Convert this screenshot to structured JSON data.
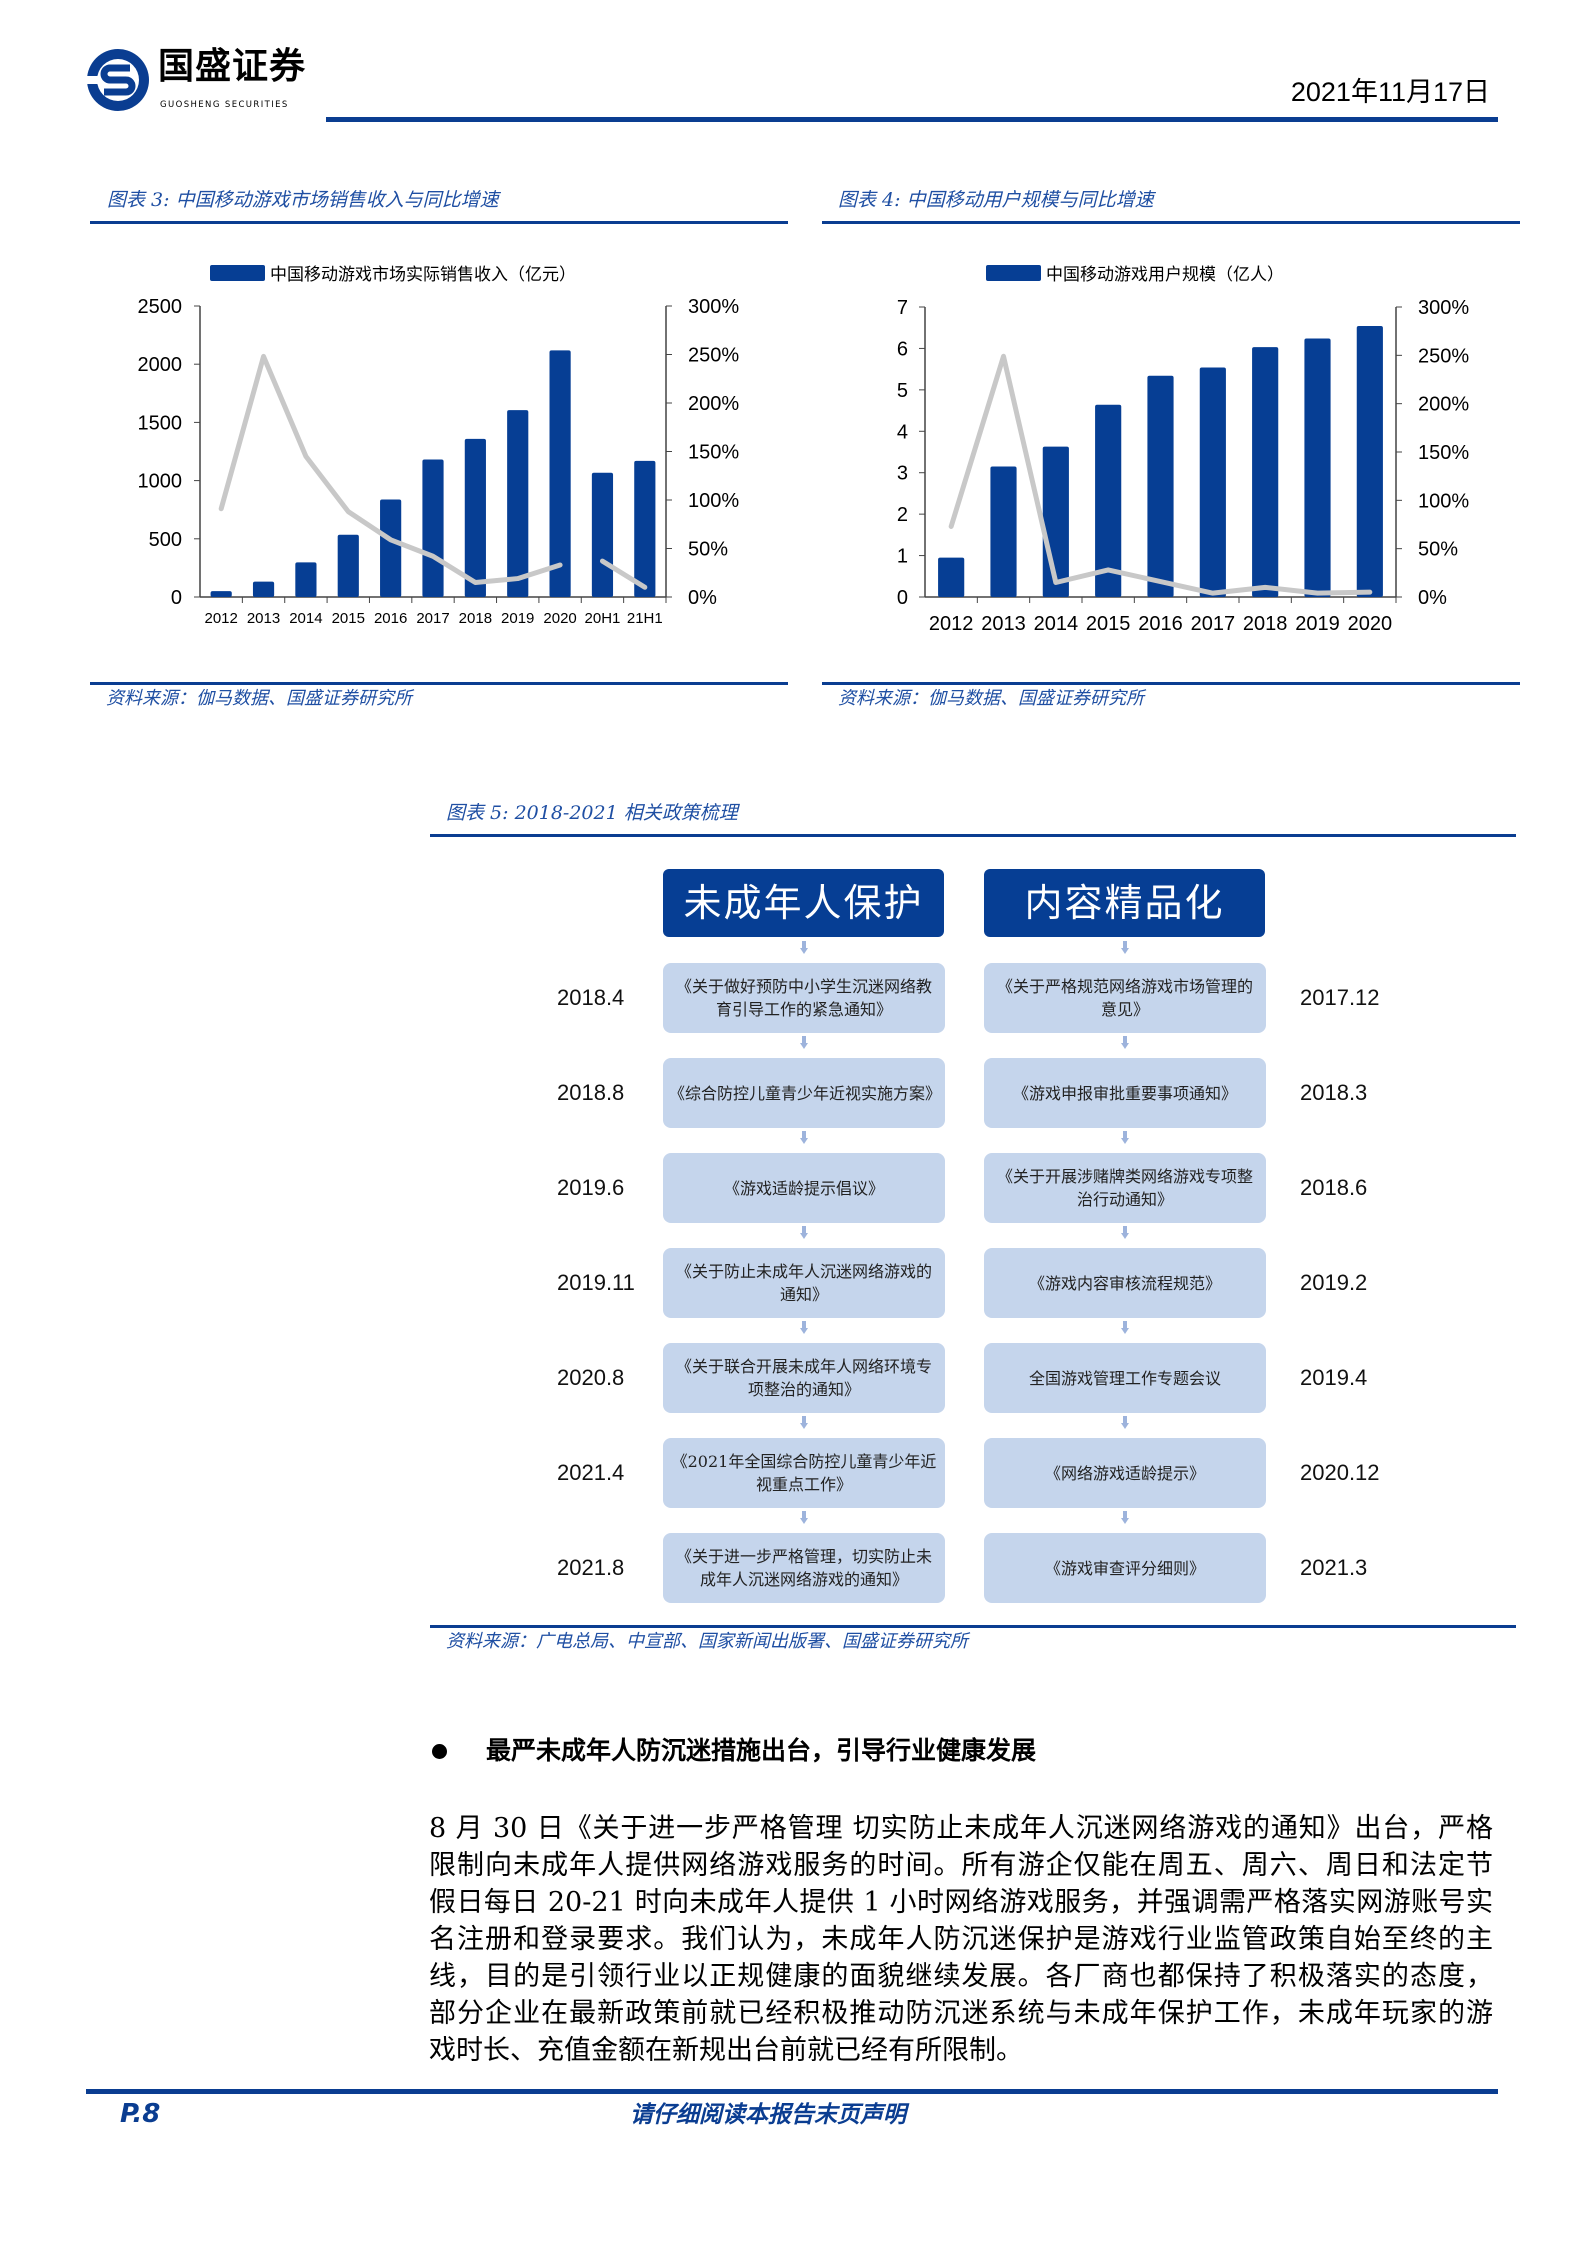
{
  "header": {
    "logo_cn": "国盛证券",
    "logo_en": "GUOSHENG SECURITIES",
    "date": "2021年11月17日"
  },
  "colors": {
    "brand_blue": "#063e94",
    "box_fill": "#c5d5ec",
    "line_gray": "#c8c8c8"
  },
  "figure3": {
    "title": "图表 3:  中国移动游戏市场销售收入与同比增速",
    "source": "资料来源：伽马数据、国盛证券研究所"
  },
  "figure4": {
    "title": "图表 4:  中国移动用户规模与同比增速",
    "source": "资料来源：伽马数据、国盛证券研究所"
  },
  "chart_data": [
    {
      "type": "bar",
      "legend_position": "top",
      "categories": [
        "2012",
        "2013",
        "2014",
        "2015",
        "2016",
        "2017",
        "2018",
        "2019",
        "2020",
        "20H1",
        "21H1"
      ],
      "series": [
        {
          "name": "中国移动游戏市场实际销售收入（亿元）",
          "type": "bar",
          "axis": "left",
          "values": [
            50,
            132,
            298,
            535,
            838,
            1181,
            1358,
            1605,
            2119,
            1067,
            1169
          ]
        },
        {
          "type": "line",
          "axis": "right",
          "values": [
            0.91,
            2.48,
            1.45,
            0.88,
            0.59,
            0.42,
            0.15,
            0.19,
            0.33,
            0.37,
            0.1
          ],
          "segments_break_after": "2020"
        }
      ],
      "ylim": [
        0,
        2500
      ],
      "yticks": [
        "0",
        "500",
        "1000",
        "1500",
        "2000",
        "2500"
      ],
      "y2lim": [
        0,
        3
      ],
      "y2ticks": [
        "0%",
        "50%",
        "100%",
        "150%",
        "200%",
        "250%",
        "300%"
      ],
      "grid": false
    },
    {
      "type": "bar",
      "legend_position": "top",
      "categories": [
        "2012",
        "2013",
        "2014",
        "2015",
        "2016",
        "2017",
        "2018",
        "2019",
        "2020"
      ],
      "series": [
        {
          "name": "中国移动游戏用户规模（亿人）",
          "type": "bar",
          "axis": "left",
          "values": [
            0.95,
            3.15,
            3.63,
            4.64,
            5.34,
            5.54,
            6.03,
            6.24,
            6.54
          ]
        },
        {
          "type": "line",
          "axis": "right",
          "values": [
            0.73,
            2.49,
            0.15,
            0.28,
            0.16,
            0.04,
            0.1,
            0.04,
            0.05
          ]
        }
      ],
      "ylim": [
        0,
        7
      ],
      "yticks": [
        "0",
        "1",
        "2",
        "3",
        "4",
        "5",
        "6",
        "7"
      ],
      "y2lim": [
        0,
        3
      ],
      "y2ticks": [
        "0%",
        "50%",
        "100%",
        "150%",
        "200%",
        "250%",
        "300%"
      ],
      "grid": false
    }
  ],
  "figure5": {
    "title": "图表 5:  2018-2021 相关政策梳理",
    "source": "资料来源：广电总局、中宣部、国家新闻出版署、国盛证券研究所",
    "left_header": "未成年人保护",
    "right_header": "内容精品化",
    "left": [
      {
        "date": "2018.4",
        "text": "《关于做好预防中小学生沉迷网络教育引导工作的紧急通知》"
      },
      {
        "date": "2018.8",
        "text": "《综合防控儿童青少年近视实施方案》"
      },
      {
        "date": "2019.6",
        "text": "《游戏适龄提示倡议》"
      },
      {
        "date": "2019.11",
        "text": "《关于防止未成年人沉迷网络游戏的通知》"
      },
      {
        "date": "2020.8",
        "text": "《关于联合开展未成年人网络环境专项整治的通知》"
      },
      {
        "date": "2021.4",
        "text": "《2021年全国综合防控儿童青少年近视重点工作》"
      },
      {
        "date": "2021.8",
        "text": "《关于进一步严格管理，切实防止未成年人沉迷网络游戏的通知》"
      }
    ],
    "right": [
      {
        "date": "2017.12",
        "text": "《关于严格规范网络游戏市场管理的意见》"
      },
      {
        "date": "2018.3",
        "text": "《游戏申报审批重要事项通知》"
      },
      {
        "date": "2018.6",
        "text": "《关于开展涉赌牌类网络游戏专项整治行动通知》"
      },
      {
        "date": "2019.2",
        "text": "《游戏内容审核流程规范》"
      },
      {
        "date": "2019.4",
        "text": "全国游戏管理工作专题会议"
      },
      {
        "date": "2020.12",
        "text": "《网络游戏适龄提示》"
      },
      {
        "date": "2021.3",
        "text": "《游戏审查评分细则》"
      }
    ]
  },
  "section": {
    "bullet_heading": "最严未成年人防沉迷措施出台，引导行业健康发展",
    "paragraph_lines": [
      "8 月 30 日《关于进一步严格管理 切实防止未成年人沉迷网络游戏的通知》出台，严格",
      "限制向未成年人提供网络游戏服务的时间。所有游企仅能在周五、周六、周日和法定节",
      "假日每日 20-21 时向未成年人提供 1 小时网络游戏服务，并强调需严格落实网游账号实",
      "名注册和登录要求。我们认为，未成年人防沉迷保护是游戏行业监管政策自始至终的主",
      "线，目的是引领行业以正规健康的面貌继续发展。各厂商也都保持了积极落实的态度，",
      "部分企业在最新政策前就已经积极推动防沉迷系统与未成年保护工作，未成年玩家的游",
      "戏时长、充值金额在新规出台前就已经有所限制。"
    ]
  },
  "footer": {
    "page": "P.8",
    "notice": "请仔细阅读本报告末页声明"
  }
}
